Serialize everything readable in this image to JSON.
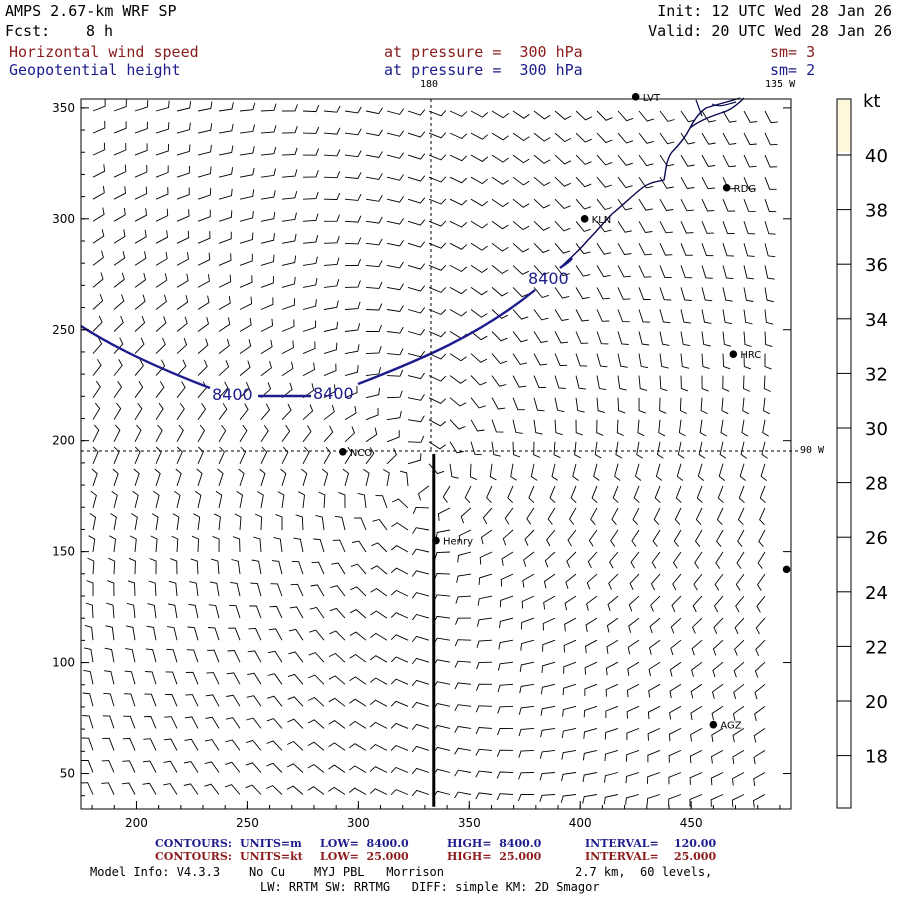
{
  "header": {
    "model": "AMPS 2.67-km WRF SP",
    "fcst_label": "Fcst:",
    "fcst_value": "8 h",
    "init": "Init: 12 UTC Wed 28 Jan 26",
    "valid": "Valid: 20 UTC Wed 28 Jan 26",
    "field1": "Horizontal wind speed",
    "field1_level": "at pressure =  300 hPa",
    "field1_sm": "sm= 3",
    "field2": "Geopotential height",
    "field2_level": "at pressure =  300 hPa",
    "field2_sm": "sm= 2"
  },
  "map": {
    "lon_labels": {
      "top": "180",
      "top_right": "135 W",
      "right": "90 W"
    },
    "x_ticks": [
      "200",
      "250",
      "300",
      "350",
      "400",
      "450"
    ],
    "y_ticks": [
      "50",
      "100",
      "150",
      "200",
      "250",
      "300",
      "350"
    ],
    "contour_labels": [
      "8400",
      "8400",
      "8400"
    ],
    "stations": [
      {
        "name": "LVT",
        "x": 425,
        "y": 355
      },
      {
        "name": "RDG",
        "x": 466,
        "y": 314
      },
      {
        "name": "KLN",
        "x": 402,
        "y": 300
      },
      {
        "name": "HRC",
        "x": 469,
        "y": 239
      },
      {
        "name": "NCO",
        "x": 293,
        "y": 195
      },
      {
        "name": "Henry",
        "x": 335,
        "y": 155
      },
      {
        "name": "",
        "x": 493,
        "y": 142
      },
      {
        "name": "AGZ",
        "x": 460,
        "y": 72
      }
    ],
    "cross_section": {
      "x": 334,
      "y_start": 35,
      "y_end": 194
    },
    "colors": {
      "contour": "#1c1c8c",
      "coast": "#0a0a50",
      "barb": "#000000"
    }
  },
  "colorbar": {
    "unit": "kt",
    "labels": [
      "40",
      "38",
      "36",
      "34",
      "32",
      "30",
      "28",
      "26",
      "24",
      "22",
      "20",
      "18"
    ],
    "top_band_color": "#fdf7dc"
  },
  "footer": {
    "row1": {
      "label": "CONTOURS:",
      "units": "UNITS=m",
      "low": "LOW=  8400.0",
      "high": "HIGH=  8400.0",
      "interval": "INTERVAL=    120.00"
    },
    "row2": {
      "label": "CONTOURS:",
      "units": "UNITS=kt",
      "low": "LOW=  25.000",
      "high": "HIGH=  25.000",
      "interval": "INTERVAL=    25.000"
    },
    "model_info": "Model Info: V4.3.3    No Cu    MYJ PBL   Morrison",
    "resolution": "2.7 km,  60 levels,",
    "physics": "LW: RRTM SW: RRTMG   DIFF: simple KM: 2D Smagor"
  }
}
